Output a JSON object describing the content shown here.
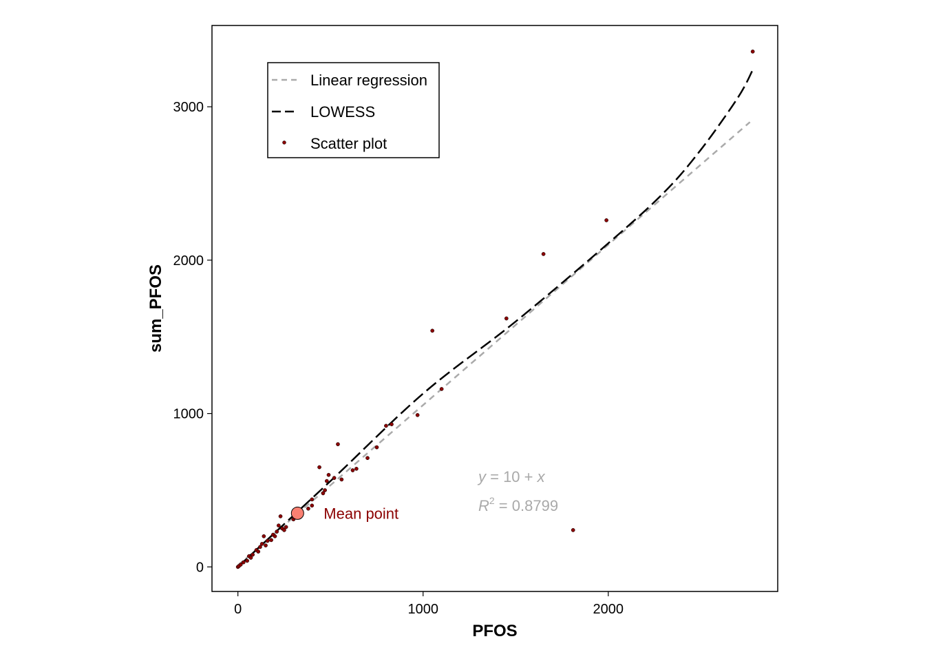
{
  "chart_data": {
    "type": "scatter",
    "xlabel": "PFOS",
    "ylabel": "sum_PFOS",
    "xlim": [
      -140,
      2915
    ],
    "ylim": [
      -160,
      3530
    ],
    "x_ticks": [
      0,
      1000,
      2000
    ],
    "y_ticks": [
      0,
      1000,
      2000,
      3000
    ],
    "x_tick_labels": [
      "0",
      "1000",
      "2000"
    ],
    "y_tick_labels": [
      "0",
      "1000",
      "2000",
      "3000"
    ],
    "grid": false,
    "legend_position": "top-left",
    "legend": [
      {
        "label": "Linear regression",
        "style": "dashed",
        "color": "#AAAAAA"
      },
      {
        "label": "LOWESS",
        "style": "longdash",
        "color": "#000000"
      },
      {
        "label": "Scatter plot",
        "style": "point",
        "color": "#8B0000"
      }
    ],
    "series": [
      {
        "name": "Scatter plot",
        "color": "#8B0000",
        "points": [
          [
            0,
            0
          ],
          [
            5,
            5
          ],
          [
            15,
            15
          ],
          [
            30,
            30
          ],
          [
            50,
            40
          ],
          [
            60,
            70
          ],
          [
            70,
            60
          ],
          [
            80,
            80
          ],
          [
            100,
            110
          ],
          [
            110,
            100
          ],
          [
            120,
            130
          ],
          [
            130,
            150
          ],
          [
            140,
            200
          ],
          [
            150,
            140
          ],
          [
            160,
            170
          ],
          [
            180,
            175
          ],
          [
            190,
            210
          ],
          [
            200,
            200
          ],
          [
            210,
            230
          ],
          [
            220,
            270
          ],
          [
            230,
            330
          ],
          [
            240,
            250
          ],
          [
            250,
            240
          ],
          [
            260,
            260
          ],
          [
            300,
            310
          ],
          [
            340,
            360
          ],
          [
            380,
            380
          ],
          [
            400,
            400
          ],
          [
            400,
            440
          ],
          [
            440,
            650
          ],
          [
            460,
            480
          ],
          [
            470,
            500
          ],
          [
            480,
            560
          ],
          [
            490,
            600
          ],
          [
            520,
            580
          ],
          [
            540,
            800
          ],
          [
            560,
            570
          ],
          [
            620,
            630
          ],
          [
            640,
            640
          ],
          [
            700,
            710
          ],
          [
            750,
            780
          ],
          [
            800,
            920
          ],
          [
            830,
            930
          ],
          [
            970,
            990
          ],
          [
            1050,
            1540
          ],
          [
            1100,
            1160
          ],
          [
            1450,
            1620
          ],
          [
            1650,
            2040
          ],
          [
            1810,
            240
          ],
          [
            1990,
            2260
          ],
          [
            2780,
            3360
          ]
        ]
      },
      {
        "name": "Linear regression",
        "color": "#AAAAAA",
        "points": [
          [
            0,
            10
          ],
          [
            2765,
            2900
          ]
        ]
      },
      {
        "name": "LOWESS",
        "color": "#000000",
        "points": [
          [
            0,
            0
          ],
          [
            500,
            560
          ],
          [
            1000,
            1130
          ],
          [
            1500,
            1600
          ],
          [
            2000,
            2110
          ],
          [
            2300,
            2440
          ],
          [
            2500,
            2720
          ],
          [
            2700,
            3060
          ],
          [
            2780,
            3240
          ]
        ]
      }
    ],
    "mean_point": {
      "x": 322,
      "y": 350,
      "label": "Mean point",
      "color": "#FA8072",
      "label_color": "#8B0000"
    },
    "equation": {
      "lhs": "y",
      "rhs": " = 10 + ",
      "var": "x",
      "color": "#A9A9A9"
    },
    "r_squared": {
      "label": "R",
      "exp": "2",
      "value": " = 0.8799",
      "color": "#A9A9A9"
    }
  }
}
